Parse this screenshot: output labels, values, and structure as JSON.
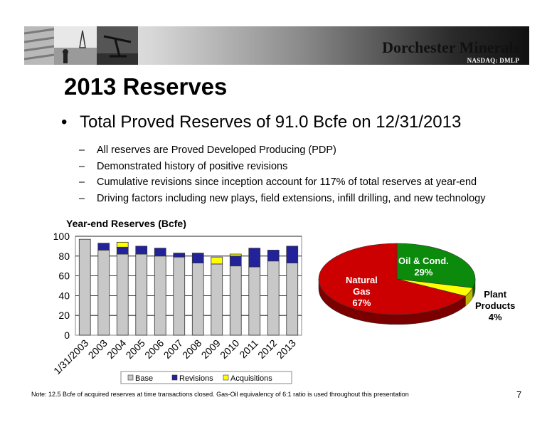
{
  "header": {
    "company": "Dorchester Minerals",
    "ticker": "NASDAQ: DMLP"
  },
  "slide": {
    "title": "2013 Reserves",
    "bullet": "Total Proved Reserves of 91.0 Bcfe on 12/31/2013",
    "dash": "–",
    "bullet_marker": "•",
    "subbullets": [
      "All reserves are Proved Developed Producing (PDP)",
      "Demonstrated history of positive revisions",
      "Cumulative revisions since inception account for 117% of total reserves at year-end",
      "Driving factors including new plays, field extensions, infill drilling, and new technology"
    ],
    "footnote": "Note: 12.5 Bcfe of acquired reserves at time transactions closed.  Gas-Oil equivalency of 6:1 ratio is used throughout this presentation",
    "page_number": "7"
  },
  "chart_data": [
    {
      "type": "bar",
      "stacked": true,
      "title": "Year-end Reserves (Bcfe)",
      "categories": [
        "1/31/2003",
        "2003",
        "2004",
        "2005",
        "2006",
        "2007",
        "2008",
        "2009",
        "2010",
        "2011",
        "2012",
        "2013"
      ],
      "yticks": [
        "0",
        "20",
        "40",
        "60",
        "80",
        "100"
      ],
      "ylim": [
        0,
        100
      ],
      "grid": true,
      "legend_position": "bottom",
      "series": [
        {
          "name": "Base",
          "color": "#c8c8c8",
          "values": [
            97,
            86,
            82,
            82,
            80,
            79,
            73,
            72,
            70,
            69,
            75,
            73
          ]
        },
        {
          "name": "Revisions",
          "color": "#22229a",
          "values": [
            0,
            7,
            7,
            8,
            8,
            4,
            10,
            0,
            10,
            19,
            11,
            17
          ]
        },
        {
          "name": "Acquisitions",
          "color": "#ffff00",
          "values": [
            0,
            0,
            5,
            0,
            0,
            0,
            0,
            7,
            2,
            0,
            0,
            0
          ]
        }
      ]
    },
    {
      "type": "pie",
      "slices": [
        {
          "label": "Oil & Cond.",
          "value": 29,
          "pct": "29%",
          "color": "#0b8a0b"
        },
        {
          "label": "Plant Products",
          "value": 4,
          "pct": "4%",
          "color": "#ffff00"
        },
        {
          "label": "Natural Gas",
          "value": 67,
          "pct": "67%",
          "color": "#cc0000"
        }
      ],
      "label_lines": {
        "oil": [
          "Oil & Cond.",
          "29%"
        ],
        "plant": [
          "Plant",
          "Products",
          "4%"
        ],
        "gas": [
          "Natural",
          "Gas",
          "67%"
        ]
      }
    }
  ]
}
